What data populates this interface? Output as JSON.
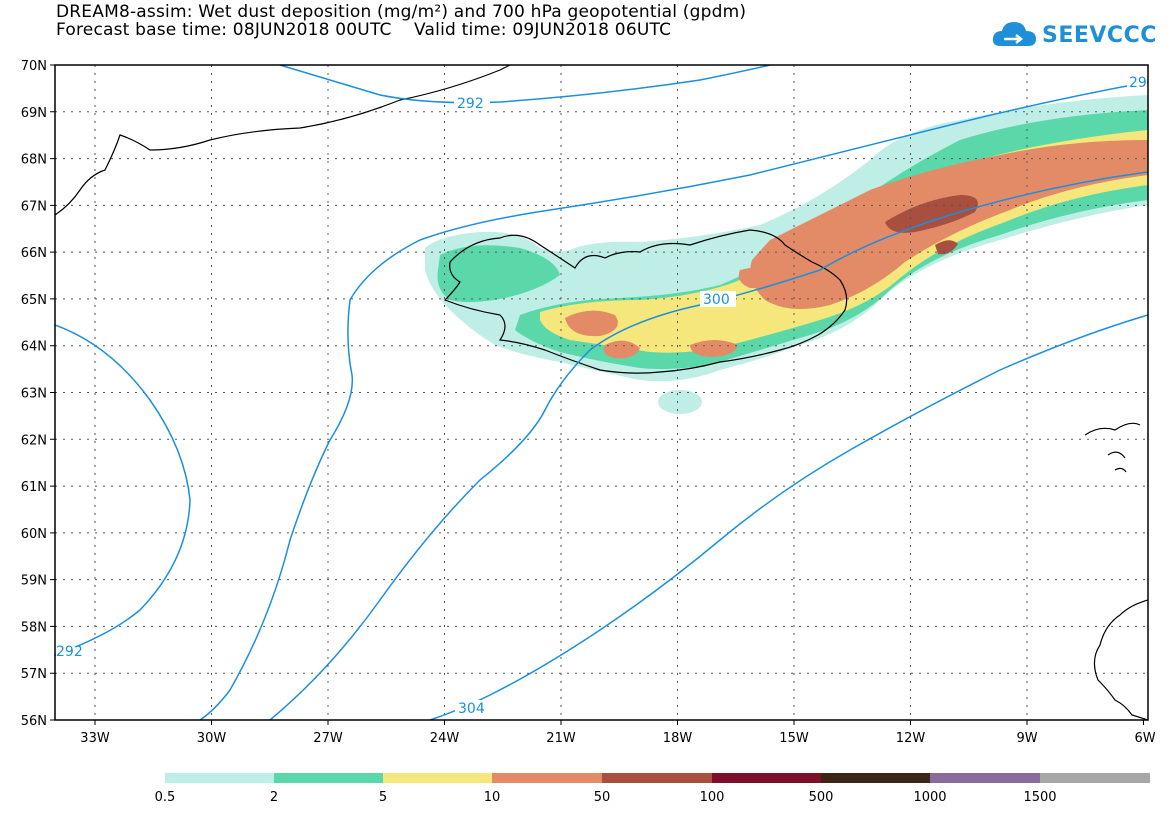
{
  "header": {
    "title": "DREAM8-assim: Wet dust deposition (mg/m²) and 700 hPa geopotential (gpdm)",
    "subtitle": "Forecast base time: 08JUN2018 00UTC    Valid time: 09JUN2018 06UTC"
  },
  "logo": {
    "text": "SEEVCCC",
    "icon": "cloud-icon"
  },
  "map": {
    "lat_range": [
      56,
      70
    ],
    "lon_range": [
      -34.3,
      -6
    ],
    "lat_labels": [
      "70N",
      "69N",
      "68N",
      "67N",
      "66N",
      "65N",
      "64N",
      "63N",
      "62N",
      "61N",
      "60N",
      "59N",
      "58N",
      "57N",
      "56N"
    ],
    "lon_labels": [
      "33W",
      "30W",
      "27W",
      "24W",
      "21W",
      "18W",
      "15W",
      "12W",
      "9W",
      "6W"
    ],
    "contour_labels": [
      "292",
      "292",
      "300",
      "304",
      "29"
    ],
    "contour_color": "#1a8fe0"
  },
  "legend": {
    "thresholds": [
      "0.5",
      "2",
      "5",
      "10",
      "50",
      "100",
      "500",
      "1000",
      "1500"
    ],
    "colors": [
      "#bfeee6",
      "#5ad8aa",
      "#f5e77c",
      "#e38a66",
      "#a84f40",
      "#7d0f2a",
      "#3b2616",
      "#8a6a9b",
      "#a7a7a7"
    ]
  }
}
